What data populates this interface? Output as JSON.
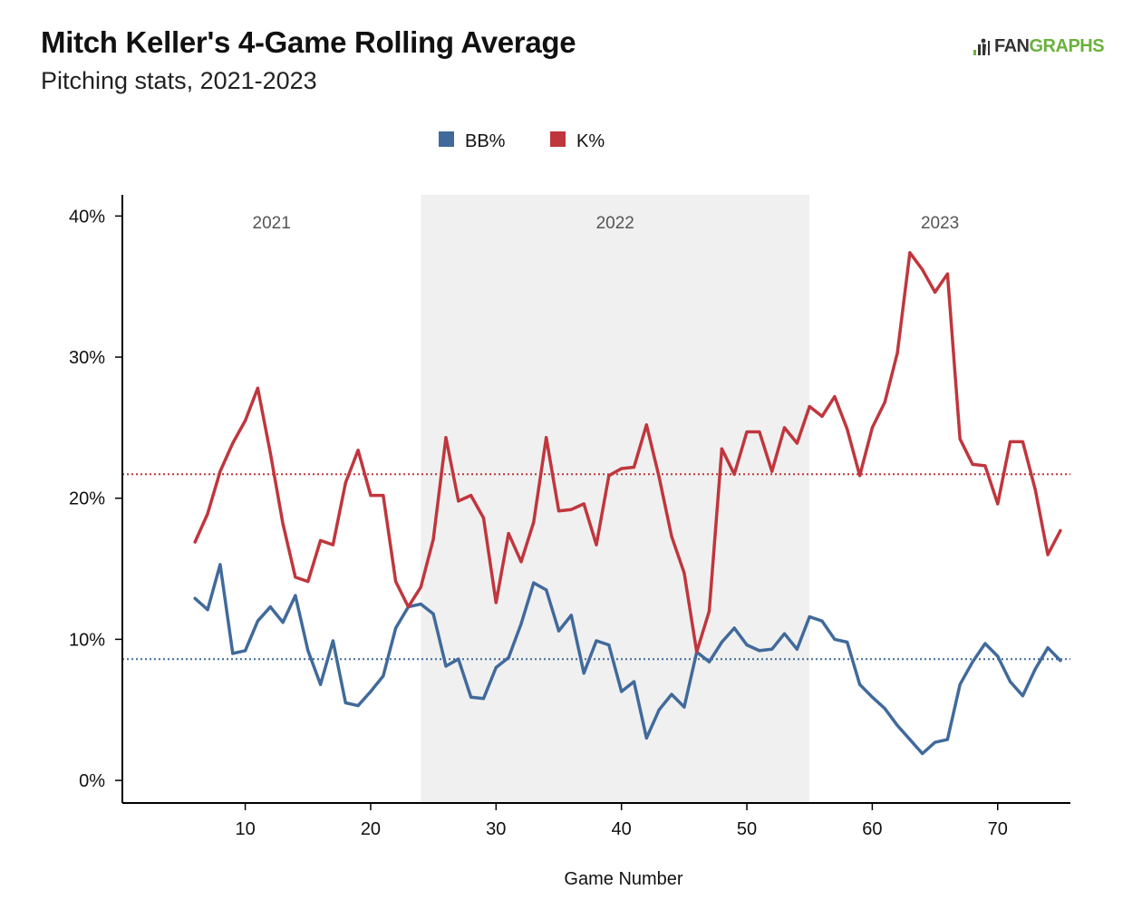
{
  "title": "Mitch Keller's 4-Game Rolling Average",
  "subtitle": "Pitching stats, 2021-2023",
  "logo": {
    "part1": "FAN",
    "part2": "GRAPHS"
  },
  "colors": {
    "bb": "#416a9b",
    "k": "#c0363d",
    "shade": "#f0f0f0"
  },
  "chart_data": {
    "type": "line",
    "title": "Mitch Keller's 4-Game Rolling Average",
    "subtitle": "Pitching stats, 2021-2023",
    "xlabel": "Game Number",
    "ylabel": "",
    "xlim": [
      0.2,
      75.8
    ],
    "ylim": [
      -1.6,
      41.5
    ],
    "x_ticks": [
      10,
      20,
      30,
      40,
      50,
      60,
      70
    ],
    "y_ticks": [
      0,
      10,
      20,
      30,
      40
    ],
    "y_tick_labels": [
      "0%",
      "10%",
      "20%",
      "30%",
      "40%"
    ],
    "legend": {
      "position": "top-center",
      "entries": [
        "BB%",
        "K%"
      ]
    },
    "grid": false,
    "seasons": [
      {
        "label": "2021",
        "start": 0.2,
        "end": 24,
        "shaded": false
      },
      {
        "label": "2022",
        "start": 24,
        "end": 55,
        "shaded": true
      },
      {
        "label": "2023",
        "start": 55,
        "end": 75.8,
        "shaded": false
      }
    ],
    "x": [
      6,
      7,
      8,
      9,
      10,
      11,
      12,
      13,
      14,
      15,
      16,
      17,
      18,
      19,
      20,
      21,
      22,
      23,
      24,
      25,
      26,
      27,
      28,
      29,
      30,
      31,
      32,
      33,
      34,
      35,
      36,
      37,
      38,
      39,
      40,
      41,
      42,
      43,
      44,
      45,
      46,
      47,
      48,
      49,
      50,
      51,
      52,
      53,
      54,
      55,
      56,
      57,
      58,
      59,
      60,
      61,
      62,
      63,
      64,
      65,
      66,
      67,
      68,
      69,
      70,
      71,
      72,
      73,
      74,
      75
    ],
    "series": [
      {
        "name": "BB%",
        "color": "#416a9b",
        "average": 8.6,
        "values": [
          12.9,
          12.1,
          15.3,
          9.0,
          9.2,
          11.3,
          12.3,
          11.2,
          13.1,
          9.2,
          6.8,
          9.9,
          5.5,
          5.3,
          6.3,
          7.4,
          10.8,
          12.3,
          12.5,
          11.8,
          8.1,
          8.6,
          5.9,
          5.8,
          8.0,
          8.7,
          11.1,
          14.0,
          13.5,
          10.6,
          11.7,
          7.6,
          9.9,
          9.6,
          6.3,
          7.0,
          3.0,
          5.0,
          6.1,
          5.2,
          9.1,
          8.4,
          9.8,
          10.8,
          9.6,
          9.2,
          9.3,
          10.4,
          9.3,
          11.6,
          11.3,
          10.0,
          9.8,
          6.8,
          5.9,
          5.1,
          3.9,
          2.9,
          1.9,
          2.7,
          2.9,
          6.8,
          8.4,
          9.7,
          8.8,
          7.0,
          6.0,
          7.9,
          9.4,
          8.5
        ]
      },
      {
        "name": "K%",
        "color": "#c0363d",
        "average": 21.7,
        "values": [
          16.9,
          18.9,
          21.9,
          23.9,
          25.5,
          27.8,
          23.2,
          18.2,
          14.4,
          14.1,
          17.0,
          16.7,
          21.1,
          23.4,
          20.2,
          20.2,
          14.1,
          12.3,
          13.7,
          17.1,
          24.3,
          19.8,
          20.2,
          18.6,
          12.6,
          17.5,
          15.5,
          18.3,
          24.3,
          19.1,
          19.2,
          19.6,
          16.7,
          21.6,
          22.1,
          22.2,
          25.2,
          21.5,
          17.3,
          14.7,
          9.1,
          12.0,
          23.5,
          21.7,
          24.7,
          24.7,
          21.9,
          25.0,
          23.9,
          26.5,
          25.8,
          27.2,
          24.9,
          21.6,
          25.0,
          26.8,
          30.3,
          37.4,
          36.2,
          34.6,
          35.9,
          24.2,
          22.4,
          22.3,
          19.6,
          24.0,
          24.0,
          20.6,
          16.0,
          17.7
        ]
      }
    ]
  }
}
